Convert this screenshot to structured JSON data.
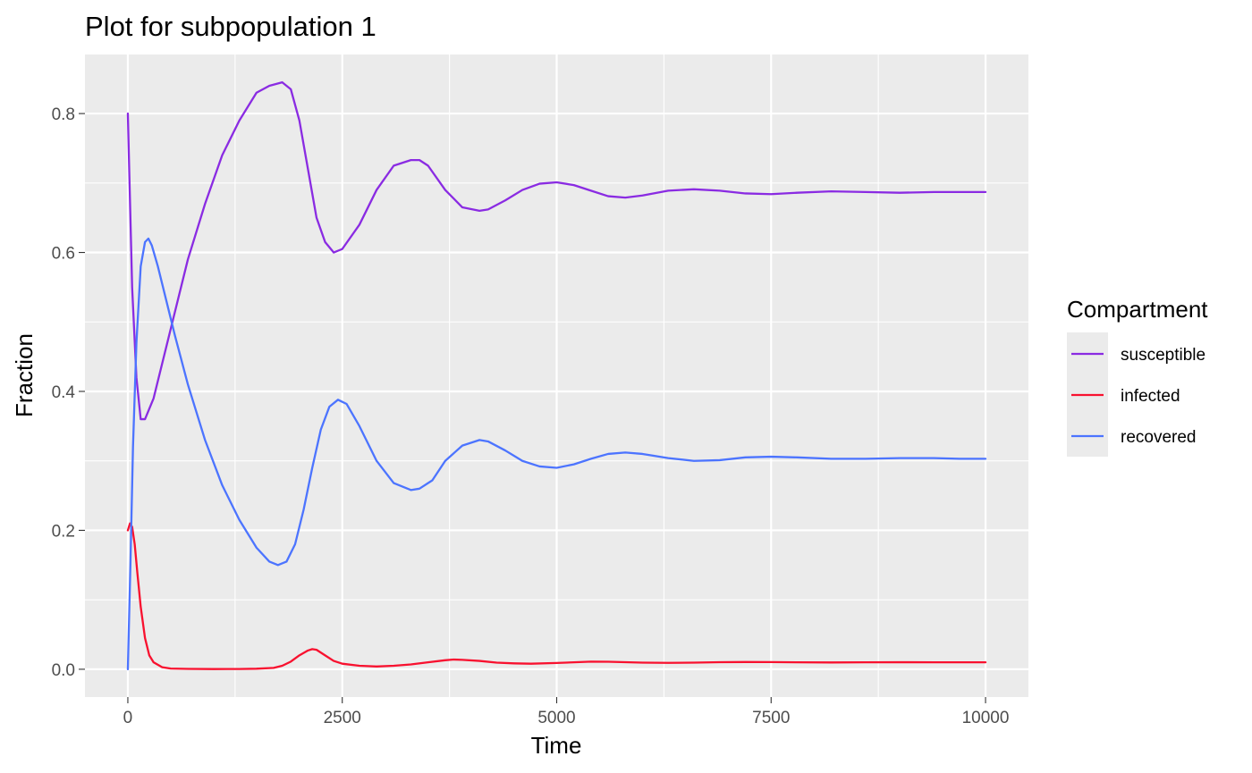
{
  "chart_data": {
    "type": "line",
    "title": "Plot for subpopulation 1",
    "xlabel": "Time",
    "ylabel": "Fraction",
    "xlim": [
      -500,
      10500
    ],
    "ylim": [
      -0.04,
      0.885
    ],
    "x_ticks": [
      0,
      2500,
      5000,
      7500,
      10000
    ],
    "x_tick_labels": [
      "0",
      "2500",
      "5000",
      "7500",
      "10000"
    ],
    "y_ticks": [
      0.0,
      0.2,
      0.4,
      0.6,
      0.8
    ],
    "y_tick_labels": [
      "0.0",
      "0.2",
      "0.4",
      "0.6",
      "0.8"
    ],
    "grid": true,
    "panel_background": "#ebebeb",
    "legend": {
      "title": "Compartment",
      "position": "right"
    },
    "series": [
      {
        "name": "susceptible",
        "color": "#8a2be2",
        "x": [
          0,
          50,
          100,
          150,
          200,
          300,
          400,
          500,
          700,
          900,
          1100,
          1300,
          1500,
          1650,
          1800,
          1900,
          2000,
          2100,
          2200,
          2300,
          2400,
          2500,
          2700,
          2900,
          3100,
          3300,
          3400,
          3500,
          3700,
          3900,
          4100,
          4200,
          4400,
          4600,
          4800,
          5000,
          5200,
          5400,
          5600,
          5800,
          6000,
          6300,
          6600,
          6900,
          7200,
          7500,
          7800,
          8200,
          8600,
          9000,
          9400,
          9700,
          10000
        ],
        "y": [
          0.8,
          0.55,
          0.42,
          0.36,
          0.36,
          0.39,
          0.44,
          0.49,
          0.59,
          0.67,
          0.74,
          0.79,
          0.83,
          0.84,
          0.845,
          0.835,
          0.79,
          0.72,
          0.65,
          0.615,
          0.6,
          0.605,
          0.64,
          0.69,
          0.725,
          0.733,
          0.733,
          0.725,
          0.69,
          0.665,
          0.66,
          0.662,
          0.675,
          0.69,
          0.699,
          0.701,
          0.697,
          0.689,
          0.681,
          0.679,
          0.682,
          0.689,
          0.691,
          0.689,
          0.685,
          0.684,
          0.686,
          0.688,
          0.687,
          0.686,
          0.687,
          0.687,
          0.687
        ]
      },
      {
        "name": "infected",
        "color": "#f8112f",
        "x": [
          0,
          25,
          50,
          80,
          110,
          150,
          200,
          250,
          300,
          400,
          500,
          700,
          1000,
          1300,
          1500,
          1700,
          1800,
          1900,
          2000,
          2100,
          2150,
          2200,
          2300,
          2400,
          2500,
          2700,
          2900,
          3100,
          3300,
          3500,
          3700,
          3800,
          3900,
          4100,
          4300,
          4500,
          4700,
          5000,
          5200,
          5400,
          5600,
          5800,
          6000,
          6300,
          6600,
          6900,
          7200,
          7500,
          7800,
          8200,
          8600,
          9000,
          9400,
          9700,
          10000
        ],
        "y": [
          0.2,
          0.21,
          0.205,
          0.18,
          0.14,
          0.09,
          0.045,
          0.02,
          0.01,
          0.003,
          0.001,
          0.0005,
          0.0003,
          0.0004,
          0.0008,
          0.002,
          0.005,
          0.011,
          0.02,
          0.027,
          0.029,
          0.028,
          0.02,
          0.012,
          0.008,
          0.005,
          0.004,
          0.005,
          0.007,
          0.01,
          0.013,
          0.014,
          0.0135,
          0.012,
          0.0095,
          0.0085,
          0.008,
          0.009,
          0.01,
          0.011,
          0.0108,
          0.0102,
          0.0095,
          0.0092,
          0.0095,
          0.0102,
          0.0104,
          0.0103,
          0.01,
          0.0098,
          0.01,
          0.0101,
          0.01,
          0.01,
          0.01
        ]
      },
      {
        "name": "recovered",
        "color": "#4c74ff",
        "x": [
          0,
          30,
          60,
          100,
          150,
          200,
          240,
          280,
          350,
          450,
          550,
          700,
          900,
          1100,
          1300,
          1500,
          1650,
          1750,
          1850,
          1950,
          2050,
          2150,
          2250,
          2350,
          2450,
          2550,
          2700,
          2900,
          3100,
          3300,
          3400,
          3550,
          3700,
          3900,
          4100,
          4200,
          4400,
          4600,
          4800,
          5000,
          5200,
          5400,
          5600,
          5800,
          6000,
          6300,
          6600,
          6900,
          7200,
          7500,
          7800,
          8200,
          8600,
          9000,
          9400,
          9700,
          10000
        ],
        "y": [
          0.0,
          0.15,
          0.32,
          0.47,
          0.58,
          0.615,
          0.62,
          0.61,
          0.58,
          0.53,
          0.48,
          0.41,
          0.33,
          0.265,
          0.215,
          0.175,
          0.155,
          0.15,
          0.155,
          0.18,
          0.23,
          0.29,
          0.345,
          0.378,
          0.388,
          0.382,
          0.35,
          0.3,
          0.268,
          0.258,
          0.26,
          0.272,
          0.3,
          0.322,
          0.33,
          0.328,
          0.315,
          0.3,
          0.292,
          0.29,
          0.295,
          0.303,
          0.31,
          0.312,
          0.31,
          0.304,
          0.3,
          0.301,
          0.305,
          0.306,
          0.305,
          0.303,
          0.303,
          0.304,
          0.304,
          0.303,
          0.303
        ]
      }
    ]
  }
}
